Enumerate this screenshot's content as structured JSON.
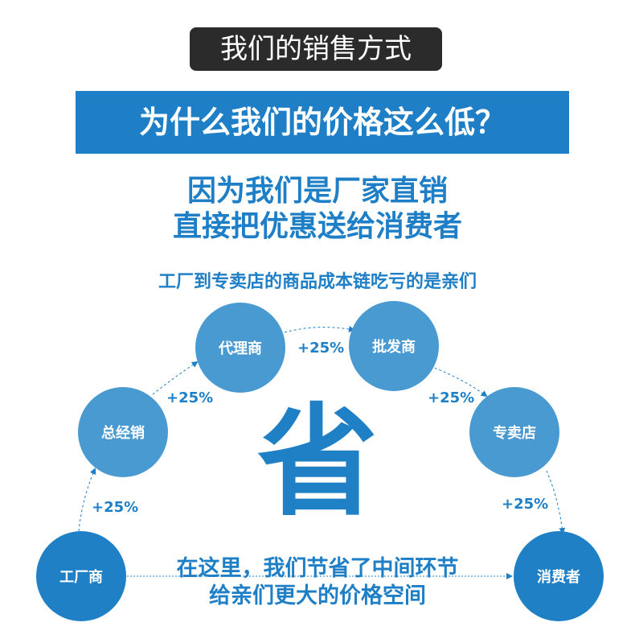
{
  "header_badge": "我们的销售方式",
  "banner_title": "为什么我们的价格这么低？",
  "subtitle_lines": [
    "因为我们是厂家直销",
    "直接把优惠送给消费者"
  ],
  "chain_caption": "工厂到专卖店的商品成本链吃亏的是亲们",
  "nodes": [
    "工厂商",
    "总经销",
    "代理商",
    "批发商",
    "专卖店",
    "消费者"
  ],
  "markups": [
    "+25%",
    "+25%",
    "+25%",
    "+25%",
    "+25%"
  ],
  "center_char": "省",
  "message_lines": [
    "在这里，我们节省了中间环节",
    "给亲们更大的价格空间"
  ],
  "colors": {
    "primary": "#1f7fc6",
    "circle_light": "#4a9ad2",
    "badge": "#2b2b2b"
  }
}
